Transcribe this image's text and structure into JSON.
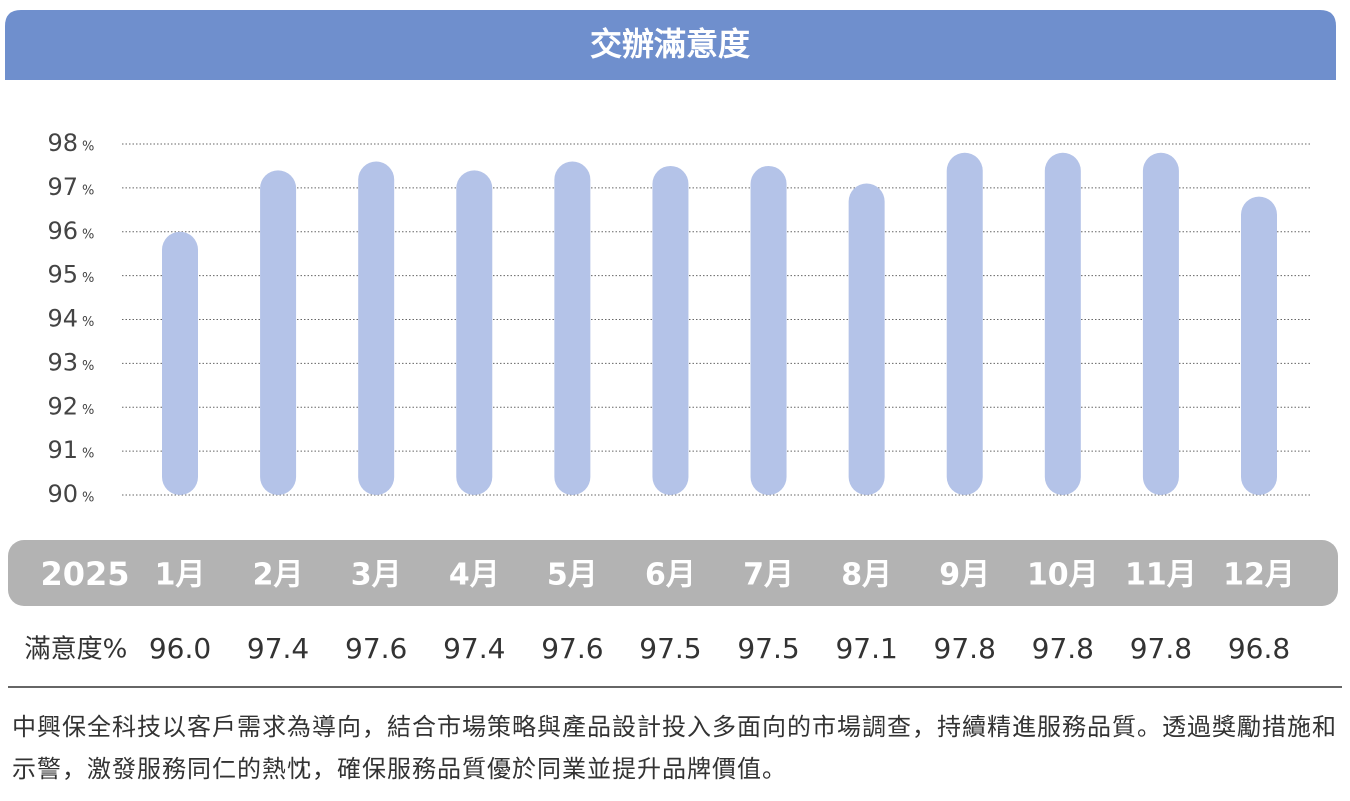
{
  "chart_data": {
    "type": "bar",
    "title": "交辦滿意度",
    "categories": [
      "1月",
      "2月",
      "3月",
      "4月",
      "5月",
      "6月",
      "7月",
      "8月",
      "9月",
      "10月",
      "11月",
      "12月"
    ],
    "values": [
      96.0,
      97.4,
      97.6,
      97.4,
      97.6,
      97.5,
      97.5,
      97.1,
      97.8,
      97.8,
      97.8,
      96.8
    ],
    "value_labels": [
      "96.0",
      "97.4",
      "97.6",
      "97.4",
      "97.6",
      "97.5",
      "97.5",
      "97.1",
      "97.8",
      "97.8",
      "97.8",
      "96.8"
    ],
    "color": "#b4c3e8",
    "ylim": [
      90,
      98
    ],
    "yticks": [
      90,
      91,
      92,
      93,
      94,
      95,
      96,
      97,
      98
    ],
    "ytick_unit": "%",
    "grid": true,
    "row_labels": [
      "2025",
      "滿意度%"
    ]
  },
  "note": "中興保全科技以客戶需求為導向，結合市場策略與產品設計投入多面向的市場調查，持續精進服務品質。透過獎勵措施和示警，激發服務同仁的熱忱，確保服務品質優於同業並提升品牌價值。"
}
